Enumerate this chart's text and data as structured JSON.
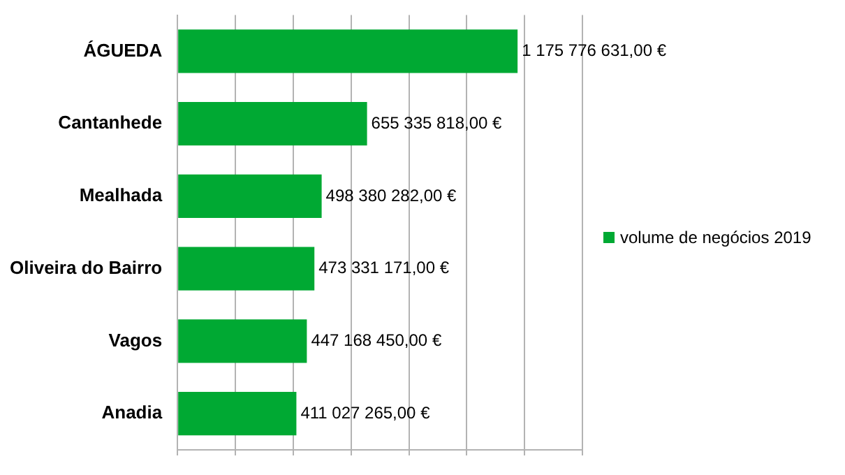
{
  "chart_data": {
    "type": "bar",
    "orientation": "horizontal",
    "categories": [
      "ÁGUEDA",
      "Cantanhede",
      "Mealhada",
      "Oliveira do Bairro",
      "Vagos",
      "Anadia"
    ],
    "series": [
      {
        "name": "volume de negócios 2019",
        "color": "#00a933",
        "values": [
          1175776631,
          655335818,
          498380282,
          473331171,
          447168450,
          411027265
        ],
        "value_labels": [
          "1 175 776 631,00 €",
          "655 335 818,00 €",
          "498 380 282,00 €",
          "473 331 171,00 €",
          "447 168 450,00 €",
          "411 027 265,00 €"
        ]
      }
    ],
    "xlim": [
      0,
      1400000000
    ],
    "xticks": [
      {
        "value": 0,
        "label": null
      },
      {
        "value": 200000000,
        "label": null
      },
      {
        "value": 400000000,
        "label": null
      },
      {
        "value": 600000000,
        "label": null
      },
      {
        "value": 800000000,
        "label": null
      },
      {
        "value": 1000000000,
        "label": null
      },
      {
        "value": 1200000000,
        "label": null
      },
      {
        "value": 1400000000,
        "label": null
      }
    ],
    "grid": "x",
    "legend": "right",
    "tick_labels": "y"
  }
}
